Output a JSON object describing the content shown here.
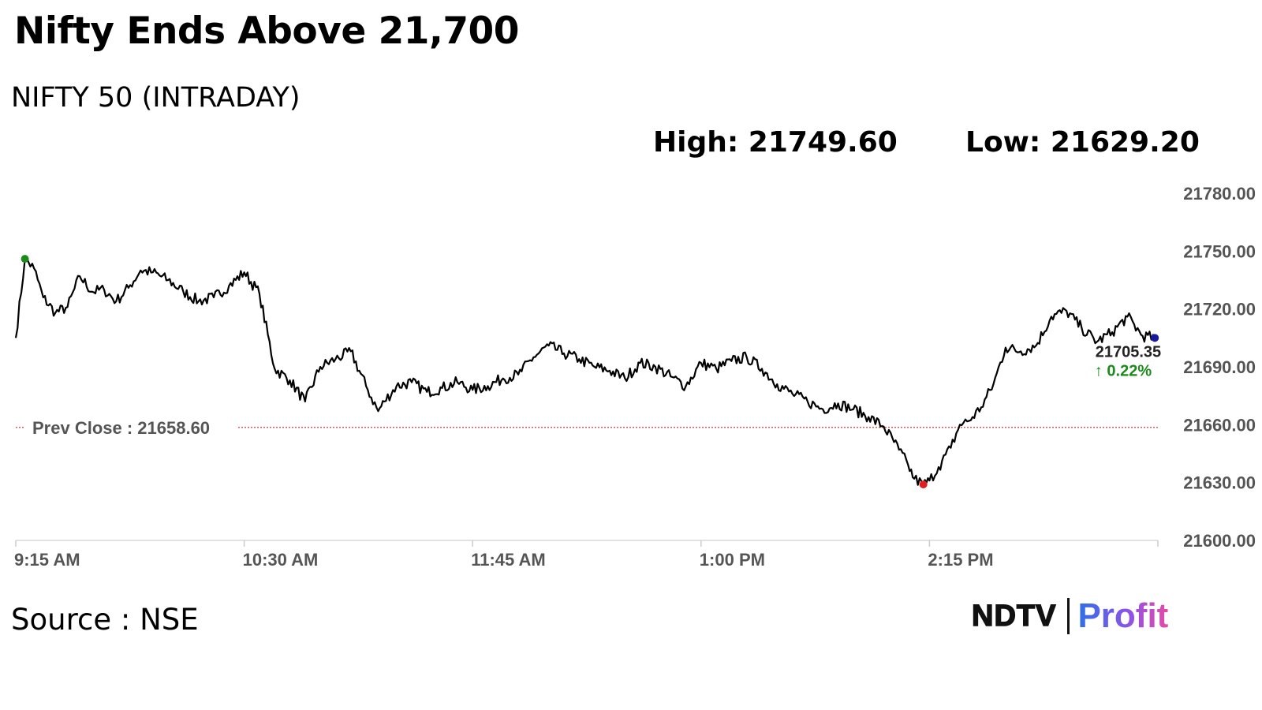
{
  "headline": "Nifty Ends Above 21,700",
  "source_label": "Source : NSE",
  "brand": {
    "ndtv": "NDTV",
    "profit": "Profit"
  },
  "colors": {
    "line": "#000000",
    "high_marker": "#1a8a1a",
    "low_marker": "#e02020",
    "last_marker": "#1a1aa0",
    "prev_close": "#d04040",
    "change_up": "#1a8a1a"
  },
  "chart_data": {
    "type": "line",
    "title": "NIFTY 50 (INTRADAY)",
    "high_label": "High: 21749.60",
    "low_label": "Low: 21629.20",
    "prev_close": 21658.6,
    "prev_close_label": "Prev Close : 21658.60",
    "last_value": 21705.35,
    "last_value_label": "21705.35",
    "change_label": "↑ 0.22%",
    "ylim": [
      21600,
      21780
    ],
    "yticks": [
      "21600.00",
      "21630.00",
      "21660.00",
      "21690.00",
      "21720.00",
      "21750.00",
      "21780.00"
    ],
    "ytick_values": [
      21600,
      21630,
      21660,
      21690,
      21720,
      21750,
      21780
    ],
    "xticks": [
      "9:15 AM",
      "10:30 AM",
      "11:45 AM",
      "1:00 PM",
      "2:15 PM"
    ],
    "xtick_values": [
      "09:15",
      "10:30",
      "11:45",
      "13:00",
      "14:15"
    ],
    "xlim": [
      "09:15",
      "15:30"
    ],
    "grid": false,
    "series": [
      {
        "x": [
          "09:15",
          "09:18",
          "09:21",
          "09:24",
          "09:28",
          "09:32",
          "09:36",
          "09:40",
          "09:44",
          "09:48",
          "09:52",
          "09:56",
          "10:00",
          "10:05",
          "10:10",
          "10:15",
          "10:20",
          "10:25",
          "10:30",
          "10:35",
          "10:40",
          "10:45",
          "10:50",
          "10:55",
          "11:00",
          "11:05",
          "11:10",
          "11:14",
          "11:16",
          "11:20",
          "11:25",
          "11:30",
          "11:35",
          "11:40",
          "11:45",
          "11:50",
          "11:55",
          "12:00",
          "12:05",
          "12:10",
          "12:15",
          "12:20",
          "12:25",
          "12:30",
          "12:35",
          "12:40",
          "12:45",
          "12:50",
          "12:55",
          "13:00",
          "13:05",
          "13:10",
          "13:15",
          "13:20",
          "13:25",
          "13:30",
          "13:35",
          "13:40",
          "13:45",
          "13:50",
          "13:55",
          "14:00",
          "14:05",
          "14:08",
          "14:10",
          "14:13",
          "14:15",
          "14:18",
          "14:22",
          "14:25",
          "14:28",
          "14:32",
          "14:36",
          "14:40",
          "14:45",
          "14:50",
          "14:55",
          "15:00",
          "15:05",
          "15:10",
          "15:15",
          "15:20",
          "15:25",
          "15:29"
        ],
        "values": [
          21705,
          21746,
          21741,
          21726,
          21718,
          21721,
          21737,
          21729,
          21730,
          21724,
          21731,
          21740,
          21739,
          21735,
          21729,
          21724,
          21726,
          21732,
          21739,
          21728,
          21689,
          21683,
          21672,
          21690,
          21694,
          21698,
          21680,
          21667,
          21672,
          21680,
          21682,
          21677,
          21679,
          21682,
          21678,
          21680,
          21684,
          21686,
          21695,
          21701,
          21697,
          21694,
          21690,
          21688,
          21684,
          21692,
          21690,
          21685,
          21680,
          21692,
          21689,
          21693,
          21695,
          21689,
          21681,
          21676,
          21672,
          21668,
          21671,
          21668,
          21664,
          21659,
          21647,
          21639,
          21632,
          21629,
          21631,
          21638,
          21648,
          21660,
          21662,
          21669,
          21681,
          21700,
          21698,
          21701,
          21716,
          21719,
          21710,
          21703,
          21708,
          21716,
          21706,
          21705
        ],
        "high_index": 1,
        "low_index": 65
      }
    ]
  }
}
